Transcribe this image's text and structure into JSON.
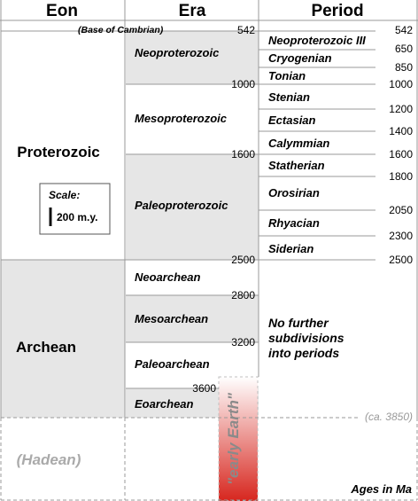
{
  "headers": {
    "eon": "Eon",
    "era": "Era",
    "period": "Period"
  },
  "base_note": "(Base of Cambrian)",
  "eons": [
    {
      "label": "Proterozoic",
      "italic": false
    },
    {
      "label": "Archean",
      "italic": false
    },
    {
      "label": "(Hadean)",
      "italic": true
    }
  ],
  "eras": [
    {
      "label": "Neoproterozoic",
      "top_age": 542,
      "bottom_age": 1000,
      "shaded": true
    },
    {
      "label": "Mesoproterozoic",
      "top_age": 1000,
      "bottom_age": 1600,
      "shaded": false
    },
    {
      "label": "Paleoproterozoic",
      "top_age": 1600,
      "bottom_age": 2500,
      "shaded": true
    },
    {
      "label": "Neoarchean",
      "top_age": 2500,
      "bottom_age": 2800,
      "shaded": false
    },
    {
      "label": "Mesoarchean",
      "top_age": 2800,
      "bottom_age": 3200,
      "shaded": true
    },
    {
      "label": "Paleoarchean",
      "top_age": 3200,
      "bottom_age": 3600,
      "shaded": false
    },
    {
      "label": "Eoarchean",
      "top_age": 3600,
      "bottom_age": 3850,
      "shaded": true
    }
  ],
  "era_boundary_labels": [
    "542",
    "1000",
    "1600",
    "2500",
    "2800",
    "3200",
    "3600"
  ],
  "periods": [
    {
      "label": "Neoproterozoic III"
    },
    {
      "label": "Cryogenian"
    },
    {
      "label": "Tonian"
    },
    {
      "label": "Stenian"
    },
    {
      "label": "Ectasian"
    },
    {
      "label": "Calymmian"
    },
    {
      "label": "Statherian"
    },
    {
      "label": "Orosirian"
    },
    {
      "label": "Rhyacian"
    },
    {
      "label": "Siderian"
    }
  ],
  "period_boundary_labels": [
    "542",
    "650",
    "850",
    "1000",
    "1200",
    "1400",
    "1600",
    "1800",
    "2050",
    "2300",
    "2500"
  ],
  "no_periods_note": [
    "No further",
    "subdivisions",
    "into periods"
  ],
  "hadean_boundary": "(ca. 3850)",
  "scale": {
    "title": "Scale:",
    "value": "200 m.y."
  },
  "early_earth": "\"early Earth\"",
  "units_note": "Ages in Ma",
  "colors": {
    "shade": "#e6e6e6",
    "line": "#999999",
    "red": "#d7261e"
  }
}
